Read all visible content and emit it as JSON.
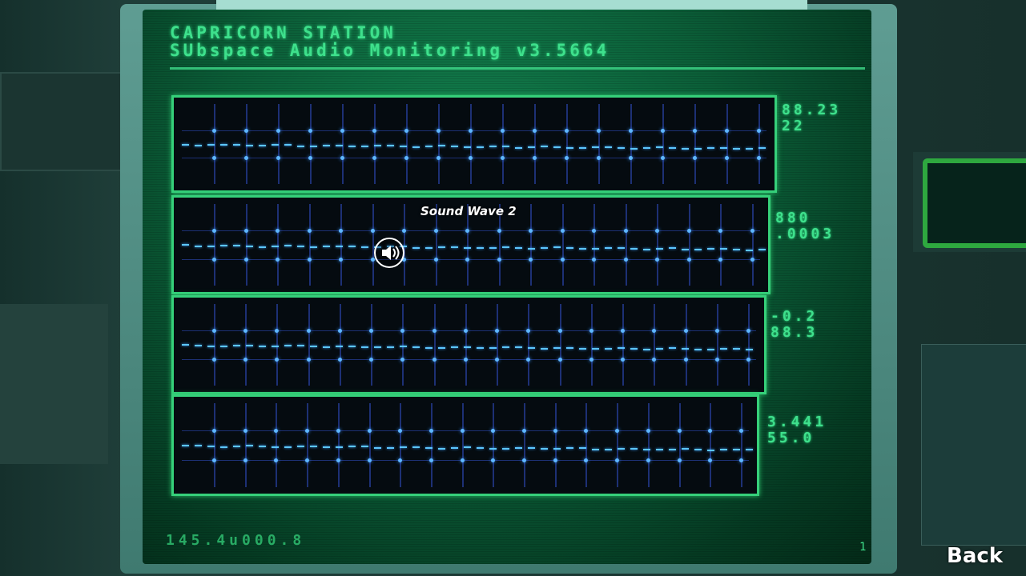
{
  "header": {
    "title_line1": "CAPRICORN STATION",
    "title_line2": "SUbspace Audio Monitoring v3.5664"
  },
  "panels": [
    {
      "name": "wave-1",
      "readout_line1": "88.23",
      "readout_line2": "22"
    },
    {
      "name": "wave-2",
      "readout_line1": "880",
      "readout_line2": ".0003"
    },
    {
      "name": "wave-3",
      "readout_line1": "-0.2",
      "readout_line2": "88.3"
    },
    {
      "name": "wave-4",
      "readout_line1": "3.441",
      "readout_line2": "55.0"
    }
  ],
  "footer": {
    "code": "145.4u000.8",
    "corner": "1"
  },
  "tooltip": {
    "label": "Sound Wave 2",
    "icon": "speaker-icon"
  },
  "nav": {
    "back_label": "Back"
  },
  "colors": {
    "phosphor": "#3ee08c",
    "wave": "#5cc6ff",
    "grid": "#3250c8"
  }
}
